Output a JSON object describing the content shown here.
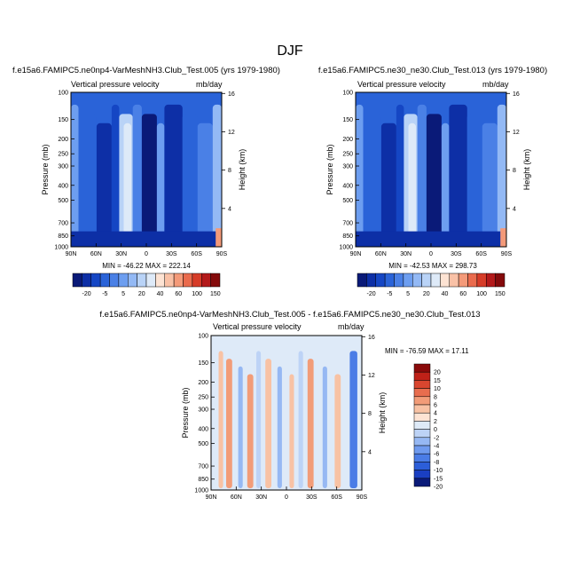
{
  "page": {
    "main_title": "DJF",
    "panel_label": "Vertical pressure velocity",
    "units": "mb/day"
  },
  "chart_data": [
    {
      "type": "heatmap",
      "title": "f.e15a6.FAMIPC5.ne0np4-VarMeshNH3.Club_Test.005 (yrs 1979-1980)",
      "subtitle": "Vertical pressure velocity",
      "units": "mb/day",
      "ylabel": "Pressure (mb)",
      "ylabel_right": "Height (km)",
      "x_ticks": [
        "90N",
        "60N",
        "30N",
        "0",
        "30S",
        "60S",
        "90S"
      ],
      "y_ticks": [
        100,
        150,
        200,
        250,
        300,
        400,
        500,
        700,
        850,
        1000
      ],
      "y_ticks_right": [
        4,
        8,
        12,
        16
      ],
      "min": -46.22,
      "max": 222.14,
      "stats_text": "MIN = -46.22   MAX = 222.14",
      "colorbar_levels": [
        -20,
        -5,
        5,
        20,
        40,
        60,
        100,
        150
      ],
      "colorbar_orientation": "horizontal"
    },
    {
      "type": "heatmap",
      "title": "f.e15a6.FAMIPC5.ne30_ne30.Club_Test.013 (yrs 1979-1980)",
      "subtitle": "Vertical pressure velocity",
      "units": "mb/day",
      "ylabel": "Pressure (mb)",
      "ylabel_right": "Height (km)",
      "x_ticks": [
        "90N",
        "60N",
        "30N",
        "0",
        "30S",
        "60S",
        "90S"
      ],
      "y_ticks": [
        100,
        150,
        200,
        250,
        300,
        400,
        500,
        700,
        850,
        1000
      ],
      "y_ticks_right": [
        4,
        8,
        12,
        16
      ],
      "min": -42.53,
      "max": 298.73,
      "stats_text": "MIN = -42.53   MAX = 298.73",
      "colorbar_levels": [
        -20,
        -5,
        5,
        20,
        40,
        60,
        100,
        150
      ],
      "colorbar_orientation": "horizontal"
    },
    {
      "type": "heatmap",
      "title": "f.e15a6.FAMIPC5.ne0np4-VarMeshNH3.Club_Test.005 - f.e15a6.FAMIPC5.ne30_ne30.Club_Test.013",
      "subtitle": "Vertical pressure velocity",
      "units": "mb/day",
      "ylabel": "Pressure (mb)",
      "ylabel_right": "Height (km)",
      "x_ticks": [
        "90N",
        "60N",
        "30N",
        "0",
        "30S",
        "60S",
        "90S"
      ],
      "y_ticks": [
        100,
        150,
        200,
        250,
        300,
        400,
        500,
        700,
        850,
        1000
      ],
      "y_ticks_right": [
        4,
        8,
        12,
        16
      ],
      "min": -76.59,
      "max": 17.11,
      "stats_text": "MIN = -76.59  MAX = 17.11",
      "colorbar_levels": [
        20,
        15,
        10,
        8,
        6,
        4,
        2,
        0,
        -2,
        -4,
        -6,
        -8,
        -10,
        -15,
        -20
      ],
      "colorbar_orientation": "vertical"
    }
  ],
  "colors": {
    "mean_palette": [
      "#0a1a78",
      "#0d2fa6",
      "#1546c4",
      "#2a63d8",
      "#4a80e6",
      "#6d9ef0",
      "#93b9f5",
      "#b9d3f7",
      "#deeaf8",
      "#fde3d3",
      "#f9c1a6",
      "#f49a79",
      "#ea6b4d",
      "#d63c28",
      "#b3191a",
      "#840a0b"
    ],
    "diff_palette": [
      "#0a1a78",
      "#1a3fc2",
      "#2c5ed9",
      "#4a7ce6",
      "#6f9aee",
      "#96b8f3",
      "#bdd3f6",
      "#deeaf8",
      "#fde3d3",
      "#f8c2a4",
      "#f29c78",
      "#e86d4e",
      "#d9462f",
      "#bf2118",
      "#8a0a0a"
    ]
  }
}
